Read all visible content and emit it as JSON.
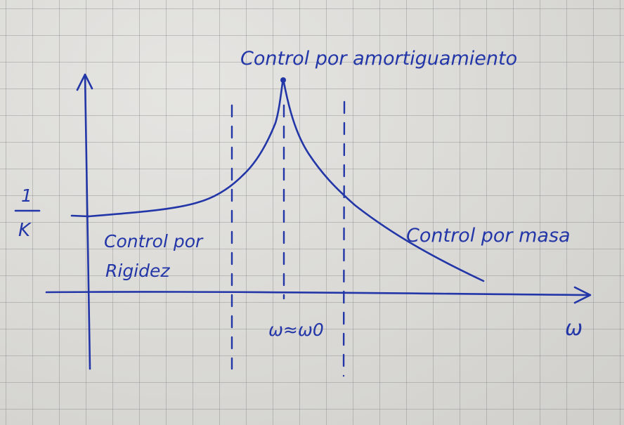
{
  "labels": {
    "top": "Control por amortiguamiento",
    "stiffness_line1": "Control por",
    "stiffness_line2": "Rigidez",
    "mass": "Control por masa",
    "y_numerator": "1",
    "y_denominator": "K",
    "x_axis": "ω",
    "resonance": "ω≈ω0"
  },
  "colors": {
    "ink": "#2336a8",
    "paper": "#dddcd8"
  }
}
